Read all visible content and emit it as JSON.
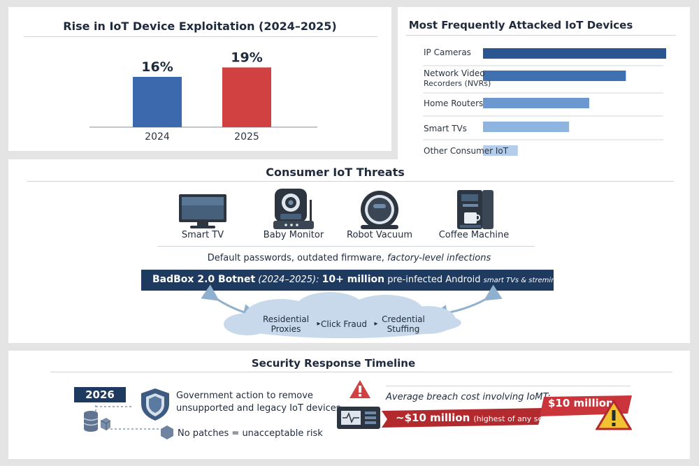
{
  "exploitation_chart": {
    "title": "Rise in IoT Device Exploitation (2024–2025)",
    "chart_data": {
      "type": "bar",
      "categories": [
        "2024",
        "2025"
      ],
      "values": [
        16,
        19
      ],
      "value_labels": [
        "16%",
        "19%"
      ],
      "colors": [
        "#3c69ad",
        "#d24142"
      ]
    }
  },
  "attacked_chart": {
    "title": "Most Frequently Attacked IoT Devices",
    "chart_data": {
      "type": "bar",
      "orientation": "horizontal",
      "categories": [
        "IP Cameras",
        "Network Video Recorders (NVRs)",
        "Home Routers",
        "Smart TVs",
        "Other Consumer IoT"
      ],
      "label_lines": [
        [
          "IP Cameras"
        ],
        [
          "Network Video",
          "Recorders (NVRs)"
        ],
        [
          "Home Routers"
        ],
        [
          "Smart TVs"
        ],
        [
          "Other Consumer IoT"
        ]
      ],
      "colors": [
        "#2a5590",
        "#3f70b0",
        "#6a98cf",
        "#8db5df",
        "#b3cdea"
      ]
    }
  },
  "threats": {
    "title": "Consumer IoT Threats",
    "devices": [
      {
        "label": "Smart TV",
        "icon": "tv-icon"
      },
      {
        "label": "Baby Monitor",
        "icon": "baby-monitor-icon"
      },
      {
        "label": "Robot Vacuum",
        "icon": "robot-vacuum-icon"
      },
      {
        "label": "Coffee Machine",
        "icon": "coffee-machine-icon"
      }
    ],
    "subtitle_plain": "Default passwords, outdated firmware, ",
    "subtitle_italic": "factory-level infections",
    "botnet": {
      "name": "BadBox 2.0 Botnet",
      "period": " (2024–2025): ",
      "count": "10+ million",
      "rest": " pre-infected Android ",
      "small": "smart TVs & streming boxes"
    },
    "cloud_items": [
      {
        "line1": "Residential",
        "line2": "Proxies"
      },
      {
        "line1": "Click Fraud",
        "line2": ""
      },
      {
        "line1": "Credential",
        "line2": "Stuffing"
      }
    ]
  },
  "timeline": {
    "title": "Security Response Timeline",
    "year": "2026",
    "action_line1": "Government action to remove",
    "action_line2": "unsupported and legacy IoT devices",
    "no_patches": "No patches = unacceptable risk",
    "breach_label": "Average breach cost involving IoMT:",
    "breach_value": "~$10 million",
    "breach_note": "(highest of any sector)",
    "breach_tag": "$10 million"
  },
  "colors": {
    "navy": "#1f3a5f",
    "blue": "#3c69ad",
    "red": "#d24142",
    "dark_red": "#b22a2e",
    "cloud": "#c7d9ea",
    "warning_yellow": "#f2c230"
  }
}
